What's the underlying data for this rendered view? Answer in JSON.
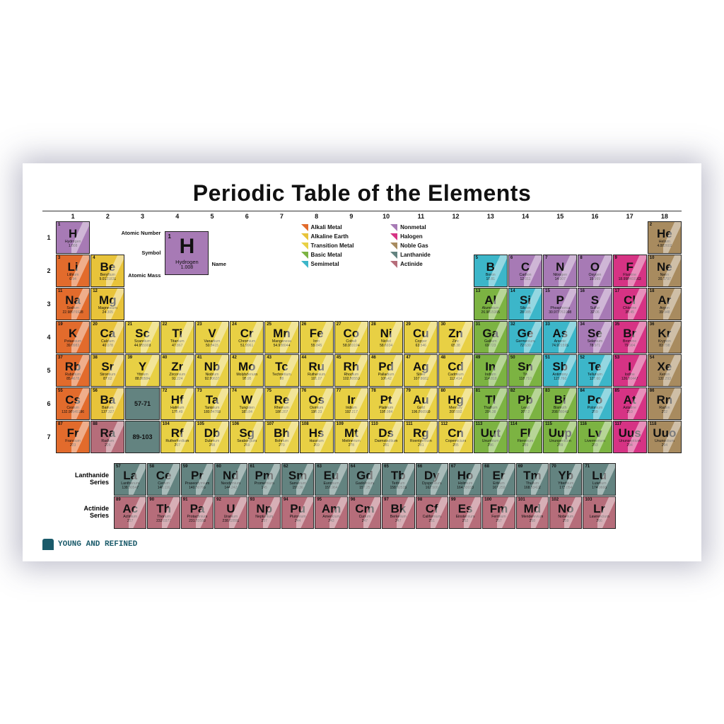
{
  "title": "Periodic Table of the Elements",
  "footer": "YOUNG AND REFINED",
  "colors": {
    "alkali": "#e26b2c",
    "alkaline": "#e8c33a",
    "transition": "#e8d044",
    "basic": "#7cb342",
    "semimetal": "#3cb6c9",
    "nonmetal": "#a77ab5",
    "halogen": "#d63384",
    "noble": "#a88b5f",
    "lanthanide": "#638380",
    "actinide": "#b66d7a"
  },
  "legend": [
    {
      "label": "Alkali Metal",
      "c": "alkali"
    },
    {
      "label": "Alkaline Earth",
      "c": "alkaline"
    },
    {
      "label": "Transition Metal",
      "c": "transition"
    },
    {
      "label": "Basic Metal",
      "c": "basic"
    },
    {
      "label": "Semimetal",
      "c": "semimetal"
    },
    {
      "label": "Nonmetal",
      "c": "nonmetal"
    },
    {
      "label": "Halogen",
      "c": "halogen"
    },
    {
      "label": "Noble Gas",
      "c": "noble"
    },
    {
      "label": "Lanthanide",
      "c": "lanthanide"
    },
    {
      "label": "Actinide",
      "c": "actinide"
    }
  ],
  "key": {
    "labels": {
      "an": "Atomic Number",
      "sy": "Symbol",
      "am": "Atomic Mass",
      "nm": "Name"
    },
    "el": {
      "n": "1",
      "s": "H",
      "nm": "Hydrogen",
      "m": "1.008",
      "c": "nonmetal"
    }
  },
  "series": {
    "lan_label": "Lanthanide Series",
    "act_label": "Actinide Series",
    "lan_placeholder": "57-71",
    "act_placeholder": "89-103"
  },
  "col_headers": [
    "1",
    "2",
    "3",
    "4",
    "5",
    "6",
    "7",
    "8",
    "9",
    "10",
    "11",
    "12",
    "13",
    "14",
    "15",
    "16",
    "17",
    "18"
  ],
  "row_headers": [
    "1",
    "2",
    "3",
    "4",
    "5",
    "6",
    "7"
  ],
  "elements": [
    {
      "n": 1,
      "s": "H",
      "nm": "Hydrogen",
      "m": "1.008",
      "c": "nonmetal",
      "r": 1,
      "g": 1
    },
    {
      "n": 2,
      "s": "He",
      "nm": "Helium",
      "m": "4.002602",
      "c": "noble",
      "r": 1,
      "g": 18
    },
    {
      "n": 3,
      "s": "Li",
      "nm": "Lithium",
      "m": "6.94",
      "c": "alkali",
      "r": 2,
      "g": 1
    },
    {
      "n": 4,
      "s": "Be",
      "nm": "Beryllium",
      "m": "9.0121831",
      "c": "alkaline",
      "r": 2,
      "g": 2
    },
    {
      "n": 5,
      "s": "B",
      "nm": "Boron",
      "m": "10.81",
      "c": "semimetal",
      "r": 2,
      "g": 13
    },
    {
      "n": 6,
      "s": "C",
      "nm": "Carbon",
      "m": "12.011",
      "c": "nonmetal",
      "r": 2,
      "g": 14
    },
    {
      "n": 7,
      "s": "N",
      "nm": "Nitrogen",
      "m": "14.007",
      "c": "nonmetal",
      "r": 2,
      "g": 15
    },
    {
      "n": 8,
      "s": "O",
      "nm": "Oxygen",
      "m": "15.999",
      "c": "nonmetal",
      "r": 2,
      "g": 16
    },
    {
      "n": 9,
      "s": "F",
      "nm": "Fluorine",
      "m": "18.998403163",
      "c": "halogen",
      "r": 2,
      "g": 17
    },
    {
      "n": 10,
      "s": "Ne",
      "nm": "Neon",
      "m": "20.1797",
      "c": "noble",
      "r": 2,
      "g": 18
    },
    {
      "n": 11,
      "s": "Na",
      "nm": "Sodium",
      "m": "22.98976928",
      "c": "alkali",
      "r": 3,
      "g": 1
    },
    {
      "n": 12,
      "s": "Mg",
      "nm": "Magnesium",
      "m": "24.305",
      "c": "alkaline",
      "r": 3,
      "g": 2
    },
    {
      "n": 13,
      "s": "Al",
      "nm": "Aluminium",
      "m": "26.9815385",
      "c": "basic",
      "r": 3,
      "g": 13
    },
    {
      "n": 14,
      "s": "Si",
      "nm": "Silicon",
      "m": "28.085",
      "c": "semimetal",
      "r": 3,
      "g": 14
    },
    {
      "n": 15,
      "s": "P",
      "nm": "Phosphorus",
      "m": "30.973761998",
      "c": "nonmetal",
      "r": 3,
      "g": 15
    },
    {
      "n": 16,
      "s": "S",
      "nm": "Sulfur",
      "m": "32.06",
      "c": "nonmetal",
      "r": 3,
      "g": 16
    },
    {
      "n": 17,
      "s": "Cl",
      "nm": "Chlorine",
      "m": "35.45",
      "c": "halogen",
      "r": 3,
      "g": 17
    },
    {
      "n": 18,
      "s": "Ar",
      "nm": "Argon",
      "m": "39.948",
      "c": "noble",
      "r": 3,
      "g": 18
    },
    {
      "n": 19,
      "s": "K",
      "nm": "Potassium",
      "m": "39.0983",
      "c": "alkali",
      "r": 4,
      "g": 1
    },
    {
      "n": 20,
      "s": "Ca",
      "nm": "Calcium",
      "m": "40.078",
      "c": "alkaline",
      "r": 4,
      "g": 2
    },
    {
      "n": 21,
      "s": "Sc",
      "nm": "Scandium",
      "m": "44.955908",
      "c": "transition",
      "r": 4,
      "g": 3
    },
    {
      "n": 22,
      "s": "Ti",
      "nm": "Titanium",
      "m": "47.867",
      "c": "transition",
      "r": 4,
      "g": 4
    },
    {
      "n": 23,
      "s": "V",
      "nm": "Vanadium",
      "m": "50.9415",
      "c": "transition",
      "r": 4,
      "g": 5
    },
    {
      "n": 24,
      "s": "Cr",
      "nm": "Chromium",
      "m": "51.9961",
      "c": "transition",
      "r": 4,
      "g": 6
    },
    {
      "n": 25,
      "s": "Mn",
      "nm": "Manganese",
      "m": "54.938044",
      "c": "transition",
      "r": 4,
      "g": 7
    },
    {
      "n": 26,
      "s": "Fe",
      "nm": "Iron",
      "m": "55.845",
      "c": "transition",
      "r": 4,
      "g": 8
    },
    {
      "n": 27,
      "s": "Co",
      "nm": "Cobalt",
      "m": "58.933194",
      "c": "transition",
      "r": 4,
      "g": 9
    },
    {
      "n": 28,
      "s": "Ni",
      "nm": "Nickel",
      "m": "58.6934",
      "c": "transition",
      "r": 4,
      "g": 10
    },
    {
      "n": 29,
      "s": "Cu",
      "nm": "Copper",
      "m": "63.546",
      "c": "transition",
      "r": 4,
      "g": 11
    },
    {
      "n": 30,
      "s": "Zn",
      "nm": "Zinc",
      "m": "65.38",
      "c": "transition",
      "r": 4,
      "g": 12
    },
    {
      "n": 31,
      "s": "Ga",
      "nm": "Gallium",
      "m": "69.723",
      "c": "basic",
      "r": 4,
      "g": 13
    },
    {
      "n": 32,
      "s": "Ge",
      "nm": "Germanium",
      "m": "72.630",
      "c": "semimetal",
      "r": 4,
      "g": 14
    },
    {
      "n": 33,
      "s": "As",
      "nm": "Arsenic",
      "m": "74.921595",
      "c": "semimetal",
      "r": 4,
      "g": 15
    },
    {
      "n": 34,
      "s": "Se",
      "nm": "Selenium",
      "m": "78.971",
      "c": "nonmetal",
      "r": 4,
      "g": 16
    },
    {
      "n": 35,
      "s": "Br",
      "nm": "Bromine",
      "m": "79.904",
      "c": "halogen",
      "r": 4,
      "g": 17
    },
    {
      "n": 36,
      "s": "Kr",
      "nm": "Krypton",
      "m": "83.798",
      "c": "noble",
      "r": 4,
      "g": 18
    },
    {
      "n": 37,
      "s": "Rb",
      "nm": "Rubidium",
      "m": "85.4678",
      "c": "alkali",
      "r": 5,
      "g": 1
    },
    {
      "n": 38,
      "s": "Sr",
      "nm": "Strontium",
      "m": "87.62",
      "c": "alkaline",
      "r": 5,
      "g": 2
    },
    {
      "n": 39,
      "s": "Y",
      "nm": "Yttrium",
      "m": "88.90584",
      "c": "transition",
      "r": 5,
      "g": 3
    },
    {
      "n": 40,
      "s": "Zr",
      "nm": "Zirconium",
      "m": "91.224",
      "c": "transition",
      "r": 5,
      "g": 4
    },
    {
      "n": 41,
      "s": "Nb",
      "nm": "Niobium",
      "m": "92.90637",
      "c": "transition",
      "r": 5,
      "g": 5
    },
    {
      "n": 42,
      "s": "Mo",
      "nm": "Molybdenum",
      "m": "95.95",
      "c": "transition",
      "r": 5,
      "g": 6
    },
    {
      "n": 43,
      "s": "Tc",
      "nm": "Technetium",
      "m": "98",
      "c": "transition",
      "r": 5,
      "g": 7
    },
    {
      "n": 44,
      "s": "Ru",
      "nm": "Ruthenium",
      "m": "101.07",
      "c": "transition",
      "r": 5,
      "g": 8
    },
    {
      "n": 45,
      "s": "Rh",
      "nm": "Rhodium",
      "m": "102.90550",
      "c": "transition",
      "r": 5,
      "g": 9
    },
    {
      "n": 46,
      "s": "Pd",
      "nm": "Palladium",
      "m": "106.42",
      "c": "transition",
      "r": 5,
      "g": 10
    },
    {
      "n": 47,
      "s": "Ag",
      "nm": "Silver",
      "m": "107.8682",
      "c": "transition",
      "r": 5,
      "g": 11
    },
    {
      "n": 48,
      "s": "Cd",
      "nm": "Cadmium",
      "m": "112.414",
      "c": "transition",
      "r": 5,
      "g": 12
    },
    {
      "n": 49,
      "s": "In",
      "nm": "Indium",
      "m": "114.818",
      "c": "basic",
      "r": 5,
      "g": 13
    },
    {
      "n": 50,
      "s": "Sn",
      "nm": "Tin",
      "m": "118.710",
      "c": "basic",
      "r": 5,
      "g": 14
    },
    {
      "n": 51,
      "s": "Sb",
      "nm": "Antimony",
      "m": "121.760",
      "c": "semimetal",
      "r": 5,
      "g": 15
    },
    {
      "n": 52,
      "s": "Te",
      "nm": "Tellurium",
      "m": "127.60",
      "c": "semimetal",
      "r": 5,
      "g": 16
    },
    {
      "n": 53,
      "s": "I",
      "nm": "Iodine",
      "m": "126.90447",
      "c": "halogen",
      "r": 5,
      "g": 17
    },
    {
      "n": 54,
      "s": "Xe",
      "nm": "Xenon",
      "m": "131.293",
      "c": "noble",
      "r": 5,
      "g": 18
    },
    {
      "n": 55,
      "s": "Cs",
      "nm": "Cesium",
      "m": "132.90545196",
      "c": "alkali",
      "r": 6,
      "g": 1
    },
    {
      "n": 56,
      "s": "Ba",
      "nm": "Barium",
      "m": "137.327",
      "c": "alkaline",
      "r": 6,
      "g": 2
    },
    {
      "n": 72,
      "s": "Hf",
      "nm": "Hafnium",
      "m": "178.49",
      "c": "transition",
      "r": 6,
      "g": 4
    },
    {
      "n": 73,
      "s": "Ta",
      "nm": "Tantalum",
      "m": "180.94788",
      "c": "transition",
      "r": 6,
      "g": 5
    },
    {
      "n": 74,
      "s": "W",
      "nm": "Tungsten",
      "m": "183.84",
      "c": "transition",
      "r": 6,
      "g": 6
    },
    {
      "n": 75,
      "s": "Re",
      "nm": "Rhenium",
      "m": "186.207",
      "c": "transition",
      "r": 6,
      "g": 7
    },
    {
      "n": 76,
      "s": "Os",
      "nm": "Osmium",
      "m": "190.23",
      "c": "transition",
      "r": 6,
      "g": 8
    },
    {
      "n": 77,
      "s": "Ir",
      "nm": "Iridium",
      "m": "192.217",
      "c": "transition",
      "r": 6,
      "g": 9
    },
    {
      "n": 78,
      "s": "Pt",
      "nm": "Platinum",
      "m": "195.084",
      "c": "transition",
      "r": 6,
      "g": 10
    },
    {
      "n": 79,
      "s": "Au",
      "nm": "Gold",
      "m": "196.966569",
      "c": "transition",
      "r": 6,
      "g": 11
    },
    {
      "n": 80,
      "s": "Hg",
      "nm": "Mercury",
      "m": "200.592",
      "c": "transition",
      "r": 6,
      "g": 12
    },
    {
      "n": 81,
      "s": "Tl",
      "nm": "Thallium",
      "m": "204.38",
      "c": "basic",
      "r": 6,
      "g": 13
    },
    {
      "n": 82,
      "s": "Pb",
      "nm": "Lead",
      "m": "207.2",
      "c": "basic",
      "r": 6,
      "g": 14
    },
    {
      "n": 83,
      "s": "Bi",
      "nm": "Bismuth",
      "m": "208.98040",
      "c": "basic",
      "r": 6,
      "g": 15
    },
    {
      "n": 84,
      "s": "Po",
      "nm": "Polonium",
      "m": "209",
      "c": "semimetal",
      "r": 6,
      "g": 16
    },
    {
      "n": 85,
      "s": "At",
      "nm": "Astatine",
      "m": "210",
      "c": "halogen",
      "r": 6,
      "g": 17
    },
    {
      "n": 86,
      "s": "Rn",
      "nm": "Radon",
      "m": "222",
      "c": "noble",
      "r": 6,
      "g": 18
    },
    {
      "n": 87,
      "s": "Fr",
      "nm": "Francium",
      "m": "223",
      "c": "alkali",
      "r": 7,
      "g": 1
    },
    {
      "n": 88,
      "s": "Ra",
      "nm": "Radium",
      "m": "226",
      "c": "actinide",
      "r": 7,
      "g": 2
    },
    {
      "n": 104,
      "s": "Rf",
      "nm": "Rutherfordium",
      "m": "267",
      "c": "transition",
      "r": 7,
      "g": 4
    },
    {
      "n": 105,
      "s": "Db",
      "nm": "Dubnium",
      "m": "268",
      "c": "transition",
      "r": 7,
      "g": 5
    },
    {
      "n": 106,
      "s": "Sg",
      "nm": "Seaborgium",
      "m": "269",
      "c": "transition",
      "r": 7,
      "g": 6
    },
    {
      "n": 107,
      "s": "Bh",
      "nm": "Bohrium",
      "m": "270",
      "c": "transition",
      "r": 7,
      "g": 7
    },
    {
      "n": 108,
      "s": "Hs",
      "nm": "Hassium",
      "m": "269",
      "c": "transition",
      "r": 7,
      "g": 8
    },
    {
      "n": 109,
      "s": "Mt",
      "nm": "Meitnerium",
      "m": "278",
      "c": "transition",
      "r": 7,
      "g": 9
    },
    {
      "n": 110,
      "s": "Ds",
      "nm": "Darmstadtium",
      "m": "281",
      "c": "transition",
      "r": 7,
      "g": 10
    },
    {
      "n": 111,
      "s": "Rg",
      "nm": "Roentgenium",
      "m": "281",
      "c": "transition",
      "r": 7,
      "g": 11
    },
    {
      "n": 112,
      "s": "Cn",
      "nm": "Copernicium",
      "m": "285",
      "c": "transition",
      "r": 7,
      "g": 12
    },
    {
      "n": 113,
      "s": "Uut",
      "nm": "Ununtrium",
      "m": "286",
      "c": "basic",
      "r": 7,
      "g": 13
    },
    {
      "n": 114,
      "s": "Fl",
      "nm": "Flerovium",
      "m": "289",
      "c": "basic",
      "r": 7,
      "g": 14
    },
    {
      "n": 115,
      "s": "Uup",
      "nm": "Ununpentium",
      "m": "289",
      "c": "basic",
      "r": 7,
      "g": 15
    },
    {
      "n": 116,
      "s": "Lv",
      "nm": "Livermorium",
      "m": "293",
      "c": "basic",
      "r": 7,
      "g": 16
    },
    {
      "n": 117,
      "s": "Uus",
      "nm": "Ununseptium",
      "m": "294",
      "c": "halogen",
      "r": 7,
      "g": 17
    },
    {
      "n": 118,
      "s": "Uuo",
      "nm": "Ununoctium",
      "m": "294",
      "c": "noble",
      "r": 7,
      "g": 18
    }
  ],
  "lanthanides": [
    {
      "n": 57,
      "s": "La",
      "nm": "Lanthanum",
      "m": "138.90547"
    },
    {
      "n": 58,
      "s": "Ce",
      "nm": "Cerium",
      "m": "140.116"
    },
    {
      "n": 59,
      "s": "Pr",
      "nm": "Praseodymium",
      "m": "140.90766"
    },
    {
      "n": 60,
      "s": "Nd",
      "nm": "Neodymium",
      "m": "144.242"
    },
    {
      "n": 61,
      "s": "Pm",
      "nm": "Promethium",
      "m": "145"
    },
    {
      "n": 62,
      "s": "Sm",
      "nm": "Samarium",
      "m": "150.36"
    },
    {
      "n": 63,
      "s": "Eu",
      "nm": "Europium",
      "m": "151.964"
    },
    {
      "n": 64,
      "s": "Gd",
      "nm": "Gadolinium",
      "m": "157.25"
    },
    {
      "n": 65,
      "s": "Tb",
      "nm": "Terbium",
      "m": "158.92535"
    },
    {
      "n": 66,
      "s": "Dy",
      "nm": "Dysprosium",
      "m": "162.500"
    },
    {
      "n": 67,
      "s": "Ho",
      "nm": "Holmium",
      "m": "164.93033"
    },
    {
      "n": 68,
      "s": "Er",
      "nm": "Erbium",
      "m": "167.259"
    },
    {
      "n": 69,
      "s": "Tm",
      "nm": "Thulium",
      "m": "168.93422"
    },
    {
      "n": 70,
      "s": "Yb",
      "nm": "Ytterbium",
      "m": "173.054"
    },
    {
      "n": 71,
      "s": "Lu",
      "nm": "Lutetium",
      "m": "174.9668"
    }
  ],
  "actinides": [
    {
      "n": 89,
      "s": "Ac",
      "nm": "Actinium",
      "m": "227"
    },
    {
      "n": 90,
      "s": "Th",
      "nm": "Thorium",
      "m": "232.0377"
    },
    {
      "n": 91,
      "s": "Pa",
      "nm": "Protactinium",
      "m": "231.03588"
    },
    {
      "n": 92,
      "s": "U",
      "nm": "Uranium",
      "m": "238.02891"
    },
    {
      "n": 93,
      "s": "Np",
      "nm": "Neptunium",
      "m": "237"
    },
    {
      "n": 94,
      "s": "Pu",
      "nm": "Plutonium",
      "m": "244"
    },
    {
      "n": 95,
      "s": "Am",
      "nm": "Americium",
      "m": "243"
    },
    {
      "n": 96,
      "s": "Cm",
      "nm": "Curium",
      "m": "247"
    },
    {
      "n": 97,
      "s": "Bk",
      "nm": "Berkelium",
      "m": "247"
    },
    {
      "n": 98,
      "s": "Cf",
      "nm": "Californium",
      "m": "251"
    },
    {
      "n": 99,
      "s": "Es",
      "nm": "Einsteinium",
      "m": "252"
    },
    {
      "n": 100,
      "s": "Fm",
      "nm": "Fermium",
      "m": "257"
    },
    {
      "n": 101,
      "s": "Md",
      "nm": "Mendelevium",
      "m": "258"
    },
    {
      "n": 102,
      "s": "No",
      "nm": "Nobelium",
      "m": "259"
    },
    {
      "n": 103,
      "s": "Lr",
      "nm": "Lawrencium",
      "m": "266"
    }
  ]
}
